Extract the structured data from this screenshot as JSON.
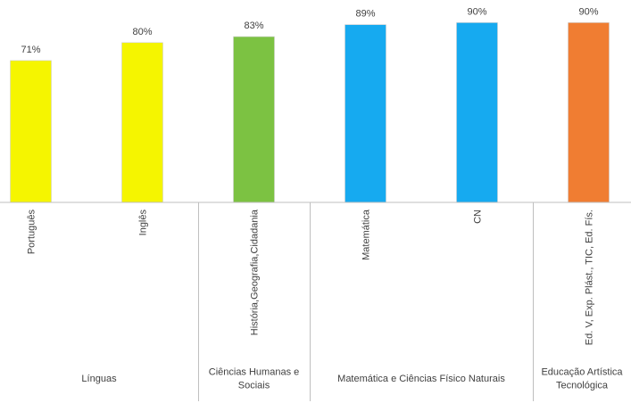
{
  "chart_data": {
    "type": "bar",
    "categories": [
      "Português",
      "Inglês",
      "História,Geografia,Cidadania",
      "Matemática",
      "CN",
      "Ed. V, Exp. Plást., TIC, Ed. Fís."
    ],
    "values": [
      71,
      80,
      83,
      89,
      90,
      90
    ],
    "value_labels": [
      "71%",
      "80%",
      "83%",
      "89%",
      "90%",
      "90%"
    ],
    "colors": [
      "#f5f500",
      "#f5f500",
      "#7cc242",
      "#16aaf0",
      "#16aaf0",
      "#f07d32"
    ],
    "groups": [
      {
        "label_lines": [
          "Línguas"
        ],
        "start": 0,
        "end": 1
      },
      {
        "label_lines": [
          "Ciências Humanas e",
          "Sociais"
        ],
        "start": 2,
        "end": 2
      },
      {
        "label_lines": [
          "Matemática e Ciências Físico Naturais"
        ],
        "start": 3,
        "end": 4
      },
      {
        "label_lines": [
          "Educação Artística",
          "Tecnológica"
        ],
        "start": 5,
        "end": 5
      }
    ],
    "ylim": [
      0,
      100
    ],
    "grid": false,
    "legend": "none"
  }
}
